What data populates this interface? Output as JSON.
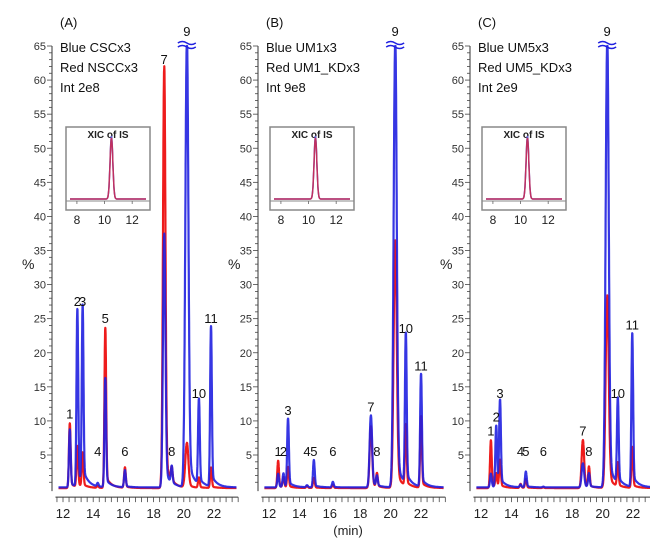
{
  "chart_data": {
    "type": "line",
    "xlabel": "(min)",
    "ylabel": "%",
    "xlim": [
      11.5,
      23.5
    ],
    "ylim": [
      0,
      65
    ],
    "xticks": [
      12,
      14,
      16,
      18,
      20,
      22
    ],
    "yticks": [
      5,
      10,
      15,
      20,
      25,
      30,
      35,
      40,
      45,
      50,
      55,
      60,
      65
    ],
    "colors": {
      "blue": "#2020e0",
      "red": "#ee1c1c"
    },
    "inset": {
      "title": "XIC of IS",
      "xticks": [
        8,
        10,
        12
      ],
      "xlim": [
        7.5,
        13
      ],
      "peak_rt": 10.5
    },
    "panels": [
      {
        "panel_label": "(A)",
        "annotation_lines": [
          "Blue CSCx3",
          "Red NSCCx3",
          "Int 2e8"
        ],
        "broken_peak": "9",
        "peaks": [
          {
            "label": "1",
            "rt": 12.45,
            "blue": 8.5,
            "red": 9.5
          },
          {
            "label": "2",
            "rt": 12.95,
            "blue": 26,
            "red": 6
          },
          {
            "label": "3",
            "rt": 13.3,
            "blue": 26,
            "red": 5
          },
          {
            "label": "4",
            "rt": 14.3,
            "blue": 0.5,
            "red": 0.3
          },
          {
            "label": "5",
            "rt": 14.8,
            "blue": 16,
            "red": 23.5
          },
          {
            "label": "6",
            "rt": 16.1,
            "blue": 2.5,
            "red": 3
          },
          {
            "label": "7",
            "rt": 18.7,
            "blue": 37,
            "red": 61.5
          },
          {
            "label": "8",
            "rt": 19.2,
            "blue": 2.5,
            "red": 2
          },
          {
            "label": "9",
            "rt": 20.2,
            "blue": 65,
            "red": 6.5
          },
          {
            "label": "10",
            "rt": 21.0,
            "blue": 12.5,
            "red": 1.5
          },
          {
            "label": "11",
            "rt": 21.8,
            "blue": 23.5,
            "red": 3
          }
        ]
      },
      {
        "panel_label": "(B)",
        "annotation_lines": [
          "Blue UM1x3",
          "Red UM1_KDx3",
          "Int 9e8"
        ],
        "broken_peak": "9",
        "peaks": [
          {
            "label": "1",
            "rt": 12.6,
            "blue": 2,
            "red": 4
          },
          {
            "label": "2",
            "rt": 12.95,
            "blue": 2,
            "red": 1.5
          },
          {
            "label": "3",
            "rt": 13.25,
            "blue": 10,
            "red": 3
          },
          {
            "label": "4",
            "rt": 14.5,
            "blue": 0.3,
            "red": 0.3
          },
          {
            "label": "5",
            "rt": 14.95,
            "blue": 4,
            "red": 1.5
          },
          {
            "label": "6",
            "rt": 16.2,
            "blue": 0.8,
            "red": 0.5
          },
          {
            "label": "7",
            "rt": 18.7,
            "blue": 10.5,
            "red": 9
          },
          {
            "label": "8",
            "rt": 19.1,
            "blue": 1.5,
            "red": 2
          },
          {
            "label": "9",
            "rt": 20.3,
            "blue": 65,
            "red": 36
          },
          {
            "label": "10",
            "rt": 21.0,
            "blue": 22,
            "red": 9
          },
          {
            "label": "11",
            "rt": 22.0,
            "blue": 16.5,
            "red": 10.5
          }
        ]
      },
      {
        "panel_label": "(C)",
        "annotation_lines": [
          "Blue UM5x3",
          "Red UM5_KDx3",
          "Int 2e9"
        ],
        "broken_peak": "9",
        "peaks": [
          {
            "label": "1",
            "rt": 12.65,
            "blue": 2,
            "red": 7
          },
          {
            "label": "2",
            "rt": 13.0,
            "blue": 9,
            "red": 2
          },
          {
            "label": "3",
            "rt": 13.25,
            "blue": 12.5,
            "red": 4
          },
          {
            "label": "4",
            "rt": 14.6,
            "blue": 0.4,
            "red": 0.6
          },
          {
            "label": "5",
            "rt": 14.95,
            "blue": 2.3,
            "red": 1.3
          },
          {
            "label": "6",
            "rt": 16.1,
            "blue": 0.1,
            "red": 0.1
          },
          {
            "label": "7",
            "rt": 18.7,
            "blue": 3.5,
            "red": 7
          },
          {
            "label": "8",
            "rt": 19.1,
            "blue": 2,
            "red": 3
          },
          {
            "label": "9",
            "rt": 20.3,
            "blue": 65,
            "red": 28
          },
          {
            "label": "10",
            "rt": 21.0,
            "blue": 12.5,
            "red": 3.5
          },
          {
            "label": "11",
            "rt": 21.95,
            "blue": 22.5,
            "red": 6
          }
        ]
      }
    ]
  }
}
